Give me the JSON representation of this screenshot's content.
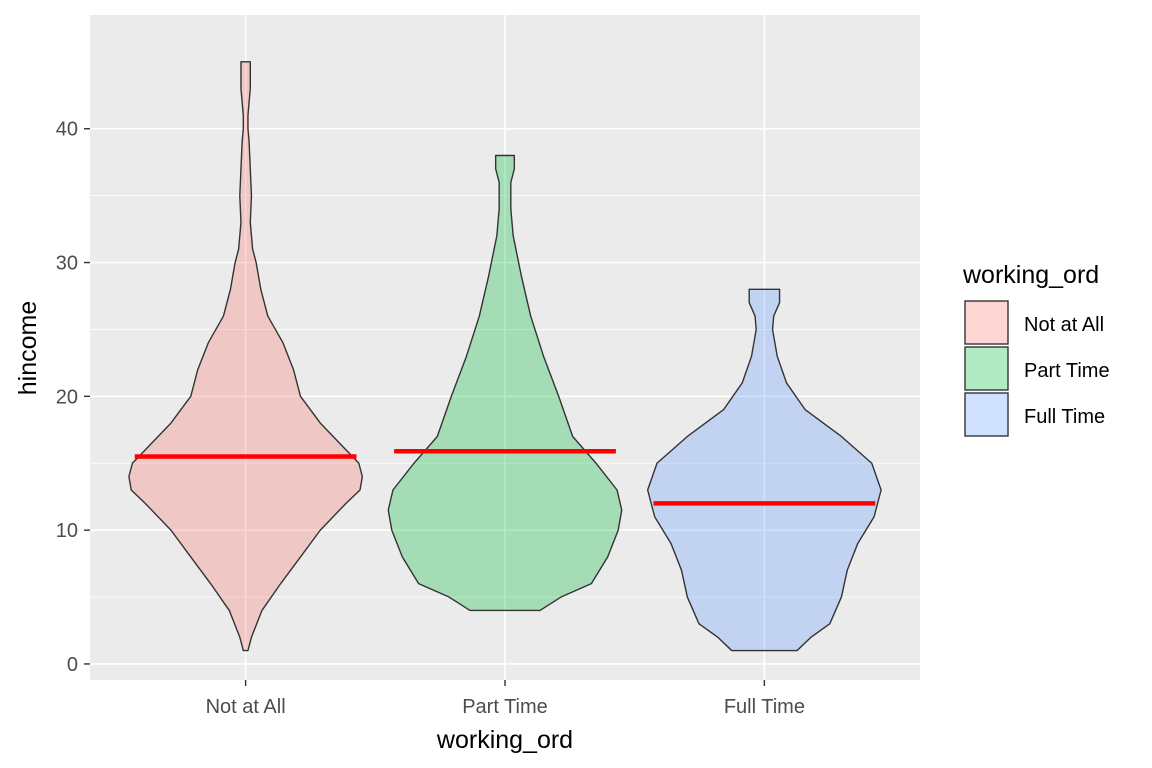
{
  "chart_data": {
    "type": "violin",
    "xlabel": "working_ord",
    "ylabel": "hincome",
    "categories": [
      "Not at All",
      "Part Time",
      "Full Time"
    ],
    "ylim": [
      -1.2,
      48.5
    ],
    "yticks": [
      0,
      10,
      20,
      30,
      40
    ],
    "ytick_labels": [
      "0",
      "10",
      "20",
      "30",
      "40"
    ],
    "grid": true,
    "legend": {
      "title": "working_ord",
      "position": "right",
      "entries": [
        "Not at All",
        "Part Time",
        "Full Time"
      ]
    },
    "colors": [
      "#F8766D",
      "#00BA38",
      "#619CFF"
    ],
    "median_color": "#FF0000",
    "series": [
      {
        "category": "Not at All",
        "median": 15.5,
        "range": [
          1,
          45
        ],
        "density": [
          [
            1,
            0.02
          ],
          [
            2,
            0.05
          ],
          [
            4,
            0.14
          ],
          [
            6,
            0.3
          ],
          [
            8,
            0.47
          ],
          [
            10,
            0.64
          ],
          [
            12,
            0.86
          ],
          [
            13,
            0.98
          ],
          [
            14,
            1.0
          ],
          [
            15,
            0.97
          ],
          [
            16,
            0.86
          ],
          [
            18,
            0.64
          ],
          [
            20,
            0.47
          ],
          [
            22,
            0.41
          ],
          [
            24,
            0.32
          ],
          [
            26,
            0.19
          ],
          [
            28,
            0.13
          ],
          [
            30,
            0.09
          ],
          [
            31,
            0.06
          ],
          [
            33,
            0.04
          ],
          [
            35,
            0.05
          ],
          [
            37,
            0.04
          ],
          [
            39,
            0.03
          ],
          [
            40,
            0.02
          ],
          [
            41,
            0.02
          ],
          [
            42,
            0.03
          ],
          [
            43,
            0.04
          ],
          [
            44,
            0.04
          ],
          [
            45,
            0.04
          ]
        ]
      },
      {
        "category": "Part Time",
        "median": 15.9,
        "range": [
          4,
          38
        ],
        "density": [
          [
            4,
            0.3
          ],
          [
            5,
            0.48
          ],
          [
            6,
            0.74
          ],
          [
            8,
            0.88
          ],
          [
            10,
            0.97
          ],
          [
            11.5,
            1.0
          ],
          [
            13,
            0.96
          ],
          [
            15,
            0.78
          ],
          [
            17,
            0.58
          ],
          [
            20,
            0.46
          ],
          [
            23,
            0.33
          ],
          [
            26,
            0.22
          ],
          [
            29,
            0.14
          ],
          [
            32,
            0.07
          ],
          [
            34,
            0.05
          ],
          [
            36,
            0.05
          ],
          [
            37,
            0.08
          ],
          [
            38,
            0.08
          ]
        ]
      },
      {
        "category": "Full Time",
        "median": 12,
        "range": [
          1,
          28
        ],
        "density": [
          [
            1,
            0.28
          ],
          [
            2,
            0.4
          ],
          [
            3,
            0.56
          ],
          [
            5,
            0.66
          ],
          [
            7,
            0.71
          ],
          [
            9,
            0.8
          ],
          [
            11,
            0.94
          ],
          [
            13,
            1.0
          ],
          [
            15,
            0.92
          ],
          [
            17,
            0.66
          ],
          [
            19,
            0.35
          ],
          [
            21,
            0.19
          ],
          [
            23,
            0.11
          ],
          [
            25,
            0.07
          ],
          [
            26,
            0.08
          ],
          [
            27,
            0.13
          ],
          [
            28,
            0.13
          ]
        ]
      }
    ]
  }
}
